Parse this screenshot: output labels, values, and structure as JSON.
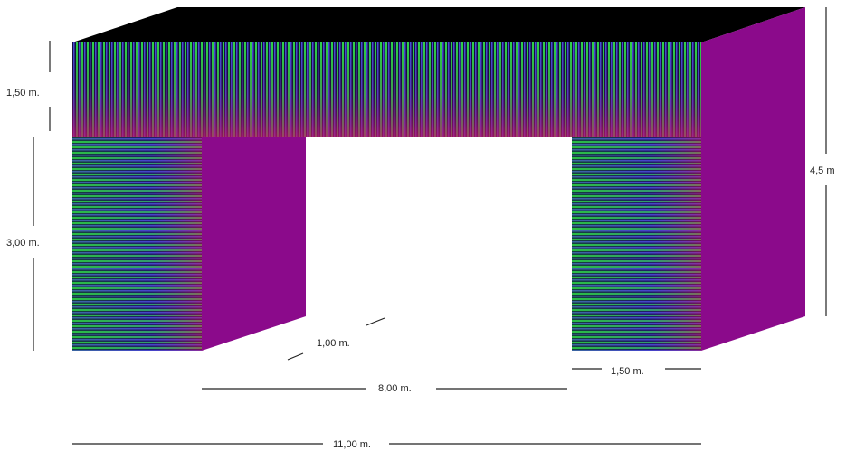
{
  "drawing": {
    "dimensions": {
      "lintel_height": "1,50 m.",
      "leg_height": "3,00 m.",
      "total_height": "4,5 m",
      "depth": "1,00 m.",
      "opening_width": "8,00 m.",
      "leg_width": "1,50 m.",
      "total_width": "11,00 m."
    },
    "colors": {
      "top_face": "#000000",
      "side_face": "#8b0a8b",
      "stripe_green": "#2fbf3a",
      "stripe_blue": "#3535c8",
      "stripe_red": "#c0186a",
      "background": "#ffffff"
    }
  }
}
